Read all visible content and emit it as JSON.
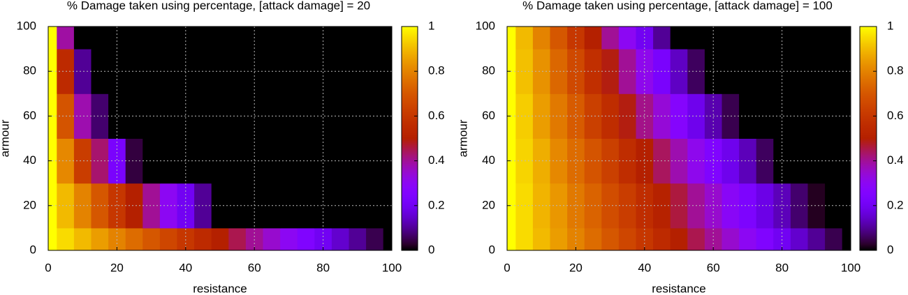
{
  "chart_data": [
    {
      "type": "heatmap",
      "title": "% Damage taken using percentage, [attack damage] = 20",
      "x_label": "resistance",
      "y_label": "armour",
      "colormap": "pm3d",
      "grid": true,
      "x": [
        0,
        5,
        10,
        15,
        20,
        25,
        30,
        35,
        40,
        45,
        50,
        55,
        60,
        65,
        70,
        75,
        80,
        85,
        90,
        95,
        100
      ],
      "y": [
        0,
        20,
        40,
        60,
        80,
        100
      ],
      "z": [
        [
          1,
          0.95,
          0.9,
          0.85,
          0.8,
          0.75,
          0.7,
          0.65,
          0.6,
          0.55,
          0.5,
          0.45,
          0.4,
          0.35,
          0.3,
          0.25,
          0.2,
          0.15,
          0.1,
          0.05,
          0
        ],
        [
          1,
          0.9,
          0.8,
          0.7,
          0.6,
          0.5,
          0.4,
          0.3,
          0.2,
          0.1,
          0,
          0,
          0,
          0,
          0,
          0,
          0,
          0,
          0,
          0,
          0
        ],
        [
          1,
          0.81,
          0.62,
          0.43,
          0.23,
          0.04,
          0,
          0,
          0,
          0,
          0,
          0,
          0,
          0,
          0,
          0,
          0,
          0,
          0,
          0,
          0
        ],
        [
          1,
          0.69,
          0.38,
          0.07,
          0,
          0,
          0,
          0,
          0,
          0,
          0,
          0,
          0,
          0,
          0,
          0,
          0,
          0,
          0,
          0,
          0
        ],
        [
          1,
          0.55,
          0.1,
          0,
          0,
          0,
          0,
          0,
          0,
          0,
          0,
          0,
          0,
          0,
          0,
          0,
          0,
          0,
          0,
          0,
          0
        ],
        [
          1,
          0.39,
          0,
          0,
          0,
          0,
          0,
          0,
          0,
          0,
          0,
          0,
          0,
          0,
          0,
          0,
          0,
          0,
          0,
          0,
          0
        ]
      ],
      "xlim": [
        0,
        100
      ],
      "ylim": [
        0,
        100
      ],
      "xticks": [
        0,
        20,
        40,
        60,
        80,
        100
      ],
      "yticks": [
        0,
        20,
        40,
        60,
        80,
        100
      ],
      "zlim": [
        0,
        1
      ],
      "zticks": [
        0,
        0.2,
        0.4,
        0.6,
        0.8,
        1
      ]
    },
    {
      "type": "heatmap",
      "title": "% Damage taken using percentage, [attack damage] = 100",
      "x_label": "resistance",
      "y_label": "armour",
      "colormap": "pm3d",
      "grid": true,
      "x": [
        0,
        5,
        10,
        15,
        20,
        25,
        30,
        35,
        40,
        45,
        50,
        55,
        60,
        65,
        70,
        75,
        80,
        85,
        90,
        95,
        100
      ],
      "y": [
        0,
        20,
        40,
        60,
        80,
        100
      ],
      "z": [
        [
          1,
          0.95,
          0.9,
          0.85,
          0.8,
          0.75,
          0.7,
          0.65,
          0.6,
          0.55,
          0.5,
          0.45,
          0.4,
          0.35,
          0.3,
          0.25,
          0.2,
          0.15,
          0.1,
          0.05,
          0
        ],
        [
          1,
          0.95,
          0.89,
          0.84,
          0.78,
          0.73,
          0.67,
          0.62,
          0.56,
          0.51,
          0.46,
          0.4,
          0.35,
          0.29,
          0.24,
          0.18,
          0.13,
          0.07,
          0.02,
          0,
          0
        ],
        [
          1,
          0.94,
          0.88,
          0.81,
          0.75,
          0.69,
          0.63,
          0.56,
          0.5,
          0.44,
          0.38,
          0.31,
          0.25,
          0.19,
          0.13,
          0.06,
          0,
          0,
          0,
          0,
          0
        ],
        [
          1,
          0.93,
          0.85,
          0.78,
          0.71,
          0.63,
          0.56,
          0.49,
          0.41,
          0.34,
          0.27,
          0.19,
          0.12,
          0.05,
          0,
          0,
          0,
          0,
          0,
          0,
          0
        ],
        [
          1,
          0.91,
          0.83,
          0.74,
          0.66,
          0.57,
          0.49,
          0.4,
          0.31,
          0.23,
          0.14,
          0.06,
          0,
          0,
          0,
          0,
          0,
          0,
          0,
          0,
          0
        ],
        [
          1,
          0.9,
          0.8,
          0.7,
          0.6,
          0.5,
          0.4,
          0.3,
          0.2,
          0.1,
          0,
          0,
          0,
          0,
          0,
          0,
          0,
          0,
          0,
          0,
          0
        ]
      ],
      "xlim": [
        0,
        100
      ],
      "ylim": [
        0,
        100
      ],
      "xticks": [
        0,
        20,
        40,
        60,
        80,
        100
      ],
      "yticks": [
        0,
        20,
        40,
        60,
        80,
        100
      ],
      "zlim": [
        0,
        1
      ],
      "zticks": [
        0,
        0.2,
        0.4,
        0.6,
        0.8,
        1
      ]
    }
  ]
}
